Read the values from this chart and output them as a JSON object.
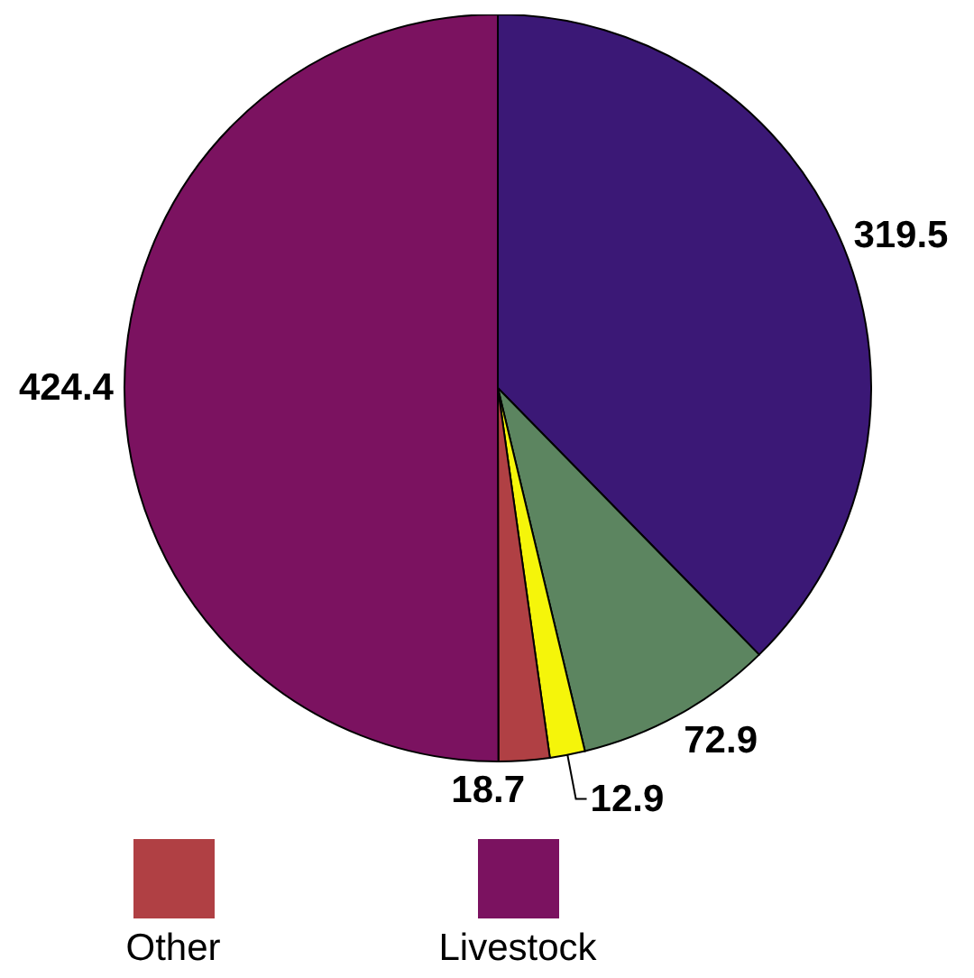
{
  "chart_data": {
    "type": "pie",
    "categories": [
      null,
      null,
      null,
      "Other",
      "Livestock"
    ],
    "values": [
      319.5,
      72.9,
      12.9,
      18.7,
      424.4
    ],
    "colors": [
      "#3b1876",
      "#5c8560",
      "#f5f50a",
      "#b04044",
      "#7b1260"
    ],
    "data_labels": true,
    "legend": "bottom"
  }
}
